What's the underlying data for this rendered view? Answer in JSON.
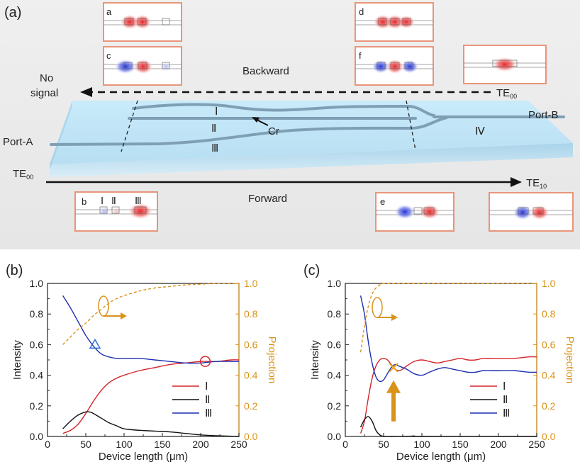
{
  "top": {
    "panel_label": "(a)",
    "no_signal": [
      "No",
      "signal"
    ],
    "backward": "Backward",
    "forward": "Forward",
    "te00_in": "TE",
    "te00_in_sub": "00",
    "te00_out": "TE",
    "te00_out_sub": "00",
    "te10_out": "TE",
    "te10_out_sub": "10",
    "port_a": "Port-A",
    "port_b": "Port-B",
    "cr": "Cr",
    "wg_labels": [
      "Ⅰ",
      "Ⅱ",
      "Ⅲ",
      "Ⅳ"
    ],
    "inset_letters": [
      "a",
      "c",
      "d",
      "f",
      "b",
      "e"
    ],
    "inset_b_marks": [
      "Ⅰ",
      "Ⅱ",
      "Ⅲ"
    ],
    "colors": {
      "positive": "#e8262b",
      "negative": "#2433d8",
      "inset_border": "#e8957a",
      "substrate": "#bfe4f6"
    }
  },
  "chart_data": [
    {
      "type": "line",
      "panel_label": "(b)",
      "xlabel": "Device length (μm)",
      "ylabel": "Intensity",
      "y2label": "Projection",
      "xlim": [
        0,
        250
      ],
      "ylim": [
        0,
        1.0
      ],
      "y2lim": [
        0,
        1.0
      ],
      "xticks": [
        "0",
        "50",
        "100",
        "150",
        "200",
        "250"
      ],
      "yticks": [
        "0.0",
        "0.2",
        "0.4",
        "0.6",
        "0.8",
        "1.0"
      ],
      "y2ticks": [
        "0.0",
        "0.2",
        "0.4",
        "0.6",
        "0.8",
        "1.0"
      ],
      "legend": [
        "Ⅰ",
        "Ⅱ",
        "Ⅲ"
      ],
      "series": [
        {
          "name": "Ⅰ",
          "color": "#d6242a",
          "x": [
            20,
            30,
            40,
            50,
            60,
            70,
            80,
            90,
            100,
            120,
            140,
            160,
            180,
            200,
            220,
            240,
            250
          ],
          "y": [
            0.02,
            0.04,
            0.08,
            0.15,
            0.23,
            0.3,
            0.35,
            0.38,
            0.4,
            0.43,
            0.45,
            0.47,
            0.48,
            0.49,
            0.49,
            0.5,
            0.5
          ]
        },
        {
          "name": "Ⅱ",
          "color": "#111111",
          "x": [
            20,
            30,
            40,
            50,
            55,
            60,
            70,
            80,
            90,
            100,
            120,
            140,
            160,
            180,
            200,
            220,
            250
          ],
          "y": [
            0.05,
            0.1,
            0.14,
            0.16,
            0.16,
            0.15,
            0.12,
            0.09,
            0.07,
            0.05,
            0.04,
            0.035,
            0.03,
            0.02,
            0.01,
            0.005,
            0.0
          ]
        },
        {
          "name": "Ⅲ",
          "color": "#1c2fb0",
          "x": [
            20,
            30,
            40,
            50,
            60,
            70,
            80,
            90,
            100,
            120,
            140,
            160,
            180,
            200,
            220,
            240,
            250
          ],
          "y": [
            0.92,
            0.84,
            0.75,
            0.66,
            0.59,
            0.54,
            0.52,
            0.51,
            0.51,
            0.51,
            0.5,
            0.49,
            0.48,
            0.48,
            0.49,
            0.49,
            0.49
          ]
        },
        {
          "name": "Projection",
          "color": "#f0a01e",
          "dashed": true,
          "axis": "right",
          "x": [
            20,
            30,
            40,
            50,
            60,
            70,
            80,
            90,
            100,
            120,
            140,
            160,
            180,
            200,
            220,
            250
          ],
          "y": [
            0.6,
            0.65,
            0.7,
            0.74,
            0.79,
            0.83,
            0.87,
            0.9,
            0.92,
            0.95,
            0.97,
            0.98,
            0.99,
            0.995,
            1.0,
            1.0
          ]
        }
      ],
      "markers": [
        {
          "shape": "triangle",
          "x": 62,
          "y": 0.6,
          "color": "#2a6fd6"
        },
        {
          "shape": "circle",
          "x": 206,
          "y": 0.49,
          "color": "#d6242a"
        }
      ]
    },
    {
      "type": "line",
      "panel_label": "(c)",
      "xlabel": "Device length (μm)",
      "ylabel": "Intensity",
      "y2label": "Projection",
      "xlim": [
        0,
        250
      ],
      "ylim": [
        0,
        1.0
      ],
      "y2lim": [
        0,
        1.0
      ],
      "xticks": [
        "0",
        "50",
        "100",
        "150",
        "200",
        "250"
      ],
      "yticks": [
        "0.0",
        "0.2",
        "0.4",
        "0.6",
        "0.8",
        "1.0"
      ],
      "y2ticks": [
        "0.0",
        "0.2",
        "0.4",
        "0.6",
        "0.8",
        "1.0"
      ],
      "legend": [
        "Ⅰ",
        "Ⅱ",
        "Ⅲ"
      ],
      "series": [
        {
          "name": "Ⅰ",
          "color": "#d6242a",
          "x": [
            20,
            25,
            30,
            35,
            40,
            45,
            50,
            55,
            60,
            65,
            70,
            75,
            80,
            90,
            100,
            110,
            120,
            130,
            140,
            150,
            160,
            170,
            180,
            190,
            200,
            220,
            240,
            250
          ],
          "y": [
            0.02,
            0.1,
            0.25,
            0.38,
            0.46,
            0.5,
            0.51,
            0.5,
            0.47,
            0.44,
            0.43,
            0.44,
            0.46,
            0.49,
            0.5,
            0.49,
            0.48,
            0.49,
            0.5,
            0.51,
            0.5,
            0.5,
            0.51,
            0.51,
            0.51,
            0.51,
            0.52,
            0.52
          ]
        },
        {
          "name": "Ⅱ",
          "color": "#111111",
          "x": [
            20,
            25,
            30,
            35,
            40,
            45,
            50,
            60,
            80,
            90,
            100,
            250
          ],
          "y": [
            0.06,
            0.11,
            0.13,
            0.1,
            0.04,
            0.01,
            0.0,
            0.0,
            0.0,
            0.003,
            0.0,
            0.0
          ]
        },
        {
          "name": "Ⅲ",
          "color": "#1c2fb0",
          "x": [
            20,
            25,
            30,
            35,
            40,
            45,
            50,
            55,
            60,
            65,
            70,
            75,
            80,
            90,
            100,
            110,
            120,
            130,
            140,
            150,
            160,
            170,
            180,
            190,
            200,
            220,
            240,
            250
          ],
          "y": [
            0.92,
            0.8,
            0.62,
            0.48,
            0.39,
            0.36,
            0.37,
            0.41,
            0.45,
            0.47,
            0.46,
            0.45,
            0.44,
            0.41,
            0.4,
            0.42,
            0.44,
            0.45,
            0.44,
            0.43,
            0.42,
            0.42,
            0.43,
            0.43,
            0.43,
            0.43,
            0.42,
            0.42
          ]
        },
        {
          "name": "Projection",
          "color": "#f0a01e",
          "dashed": true,
          "axis": "right",
          "x": [
            20,
            25,
            30,
            35,
            40,
            45,
            50,
            60,
            80,
            120,
            250
          ],
          "y": [
            0.55,
            0.72,
            0.85,
            0.93,
            0.97,
            0.99,
            1.0,
            1.0,
            1.0,
            1.0,
            1.0
          ]
        }
      ],
      "markers": [
        {
          "shape": "x",
          "x": 63,
          "y": 0.45,
          "color": "#f0a01e"
        }
      ]
    }
  ]
}
